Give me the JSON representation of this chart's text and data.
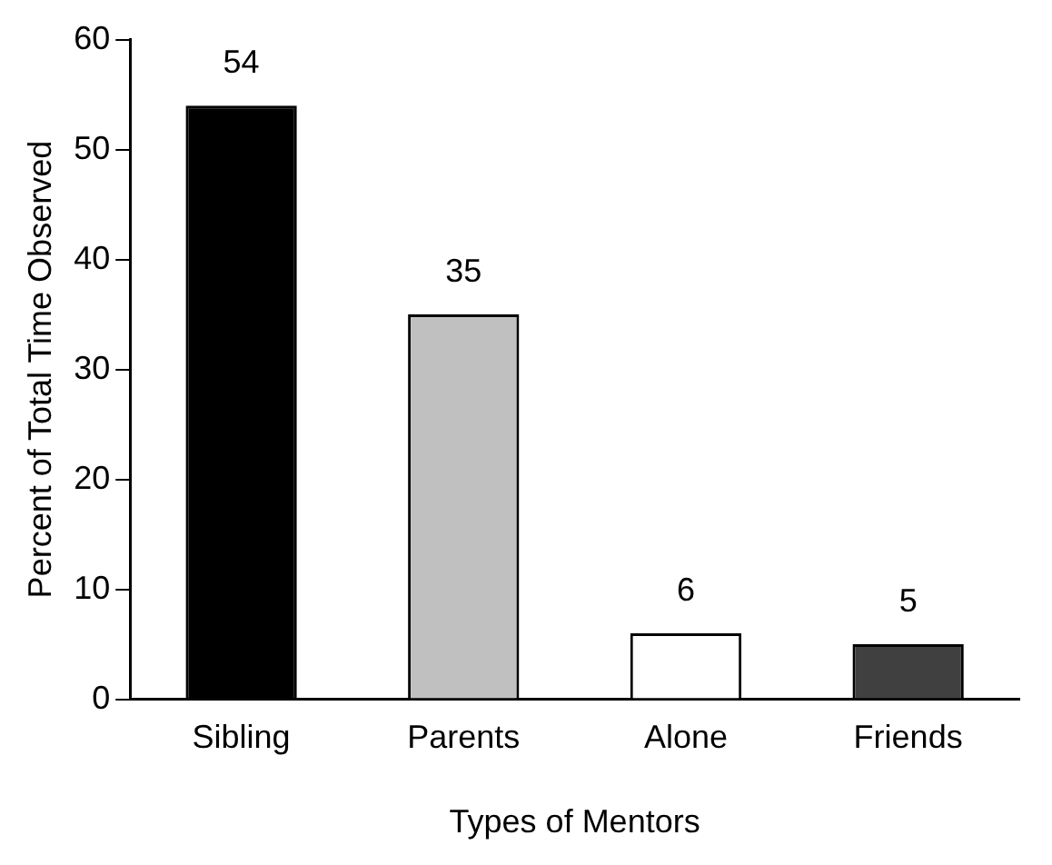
{
  "chart_data": {
    "type": "bar",
    "xlabel": "Types of Mentors",
    "ylabel": "Percent of Total Time Observed",
    "categories": [
      "Sibling",
      "Parents",
      "Alone",
      "Friends"
    ],
    "values": [
      54,
      35,
      6,
      5
    ],
    "colors": [
      "#000000",
      "#c0c0c0",
      "#ffffff",
      "#404040"
    ],
    "ylim": [
      0,
      60
    ],
    "yticks": [
      0,
      10,
      20,
      30,
      40,
      50,
      60
    ],
    "grid": false,
    "legend": false,
    "data_labels": true
  }
}
